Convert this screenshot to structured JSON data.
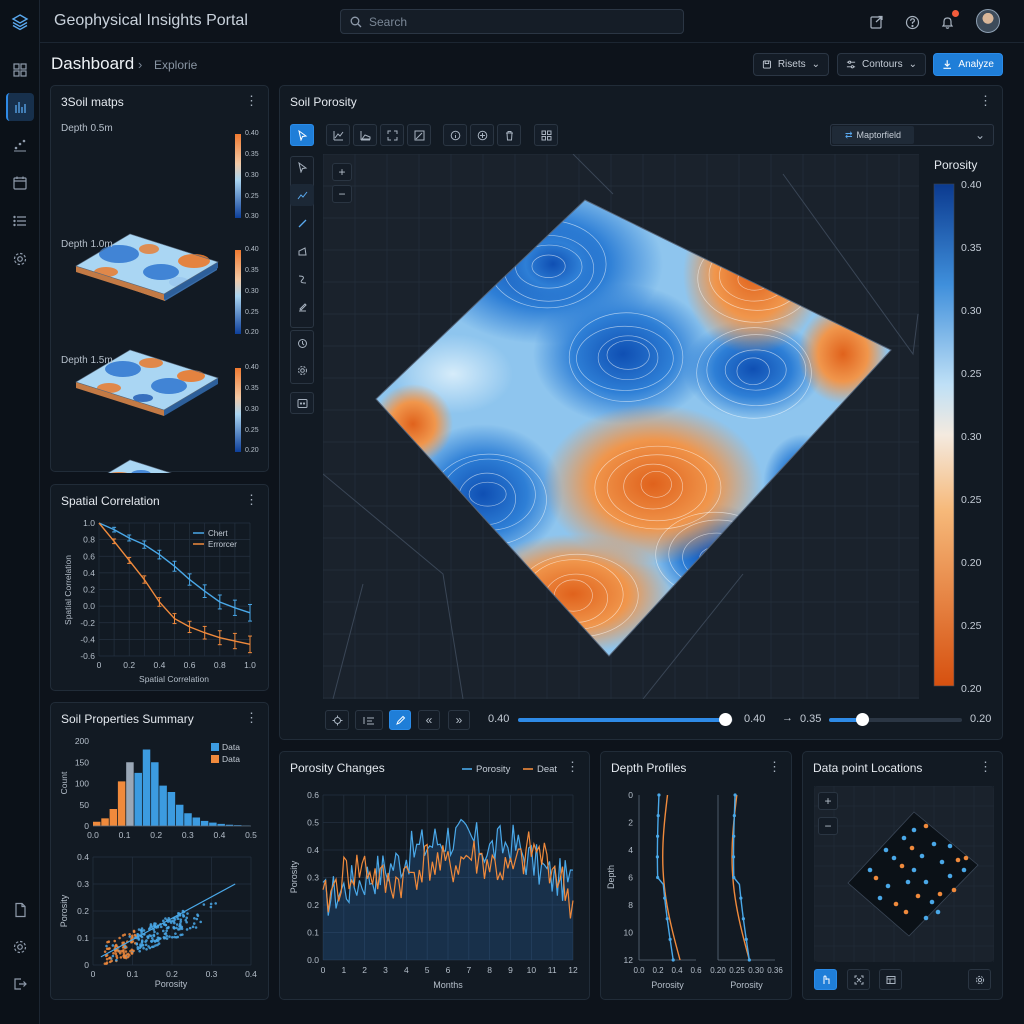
{
  "app": {
    "title": "Geophysical Insights Portal"
  },
  "search": {
    "placeholder": "Search"
  },
  "breadcrumb": {
    "title": "Dashboard",
    "current": "Explorie"
  },
  "toolbar": {
    "presets_label": "Risets",
    "contours_label": "Contours",
    "analyze_label": "Analyze",
    "accent": "#1f7ed8"
  },
  "rail": {
    "icons": [
      "grid-icon",
      "chart-icon",
      "scatter-icon",
      "calendar-icon",
      "list-icon",
      "settings-icon",
      "document-icon",
      "gear-icon",
      "logout-icon"
    ]
  },
  "soil_maps": {
    "title": "3Soil matps",
    "depths": [
      {
        "label": "Depth 0.5m",
        "scale": [
          "0.40",
          "0.35",
          "0.30",
          "0.25",
          "0.30"
        ]
      },
      {
        "label": "Depth 1.0m",
        "scale": [
          "0.40",
          "0.35",
          "0.30",
          "0.25",
          "0.20"
        ]
      },
      {
        "label": "Depth 1.5m",
        "scale": [
          "0.40",
          "0.35",
          "0.30",
          "0.25",
          "0.20"
        ]
      }
    ]
  },
  "main_map": {
    "title": "Soil Porosity",
    "layer": "Maptorfield",
    "legend_title": "Porosity",
    "legend_ticks": [
      "0.40",
      "0.35",
      "0.30",
      "0.25",
      "0.30",
      "0.25",
      "0.20",
      "0.25",
      "0.20"
    ],
    "slider": {
      "min_label": "0.40",
      "max_label": "0.40",
      "value": 1.0,
      "arrow": "→",
      "range_min": "0.35",
      "range_max": "0.20",
      "range_value": 0.25
    }
  },
  "spatial_correlation": {
    "title": "Spatial Correlation",
    "chart_data": {
      "type": "line",
      "x": [
        0,
        0.1,
        0.2,
        0.3,
        0.4,
        0.5,
        0.6,
        0.7,
        0.8,
        0.9,
        1.0
      ],
      "series": [
        {
          "name": "Chert",
          "color": "#4aa8e8",
          "values": [
            1.0,
            0.92,
            0.82,
            0.74,
            0.62,
            0.48,
            0.32,
            0.18,
            0.05,
            -0.02,
            -0.08
          ]
        },
        {
          "name": "Errorcer",
          "color": "#f08a3c",
          "values": [
            1.0,
            0.78,
            0.55,
            0.32,
            0.05,
            -0.15,
            -0.25,
            -0.32,
            -0.38,
            -0.42,
            -0.46
          ]
        }
      ],
      "xlabel": "Spatial Correlation",
      "ylabel": "Spatial Correlation",
      "xticks": [
        "0",
        "0.2",
        "0.4",
        "0.6",
        "0.8",
        "1.0"
      ],
      "yticks": [
        "1.0",
        "0.8",
        "0.6",
        "0.4",
        "0.2",
        "0.0",
        "-0.2",
        "-0.4",
        "-0.6"
      ],
      "xlim": [
        0,
        1.0
      ],
      "ylim": [
        -0.6,
        1.0
      ]
    }
  },
  "soil_summary": {
    "title": "Soil Properties Summary",
    "histogram": {
      "type": "bar",
      "legend": [
        "Data",
        "Data"
      ],
      "colors": [
        "#3c9be0",
        "#f08a3c"
      ],
      "bins": [
        0.0,
        0.025,
        0.05,
        0.075,
        0.1,
        0.125,
        0.15,
        0.175,
        0.2,
        0.225,
        0.25,
        0.275,
        0.3,
        0.325,
        0.35,
        0.375,
        0.4,
        0.425,
        0.45
      ],
      "values": [
        10,
        18,
        40,
        105,
        150,
        125,
        180,
        150,
        95,
        80,
        50,
        30,
        20,
        12,
        8,
        5,
        3,
        2,
        1
      ],
      "series_index": [
        1,
        1,
        1,
        1,
        1,
        0,
        0,
        0,
        0,
        0,
        0,
        0,
        0,
        0,
        0,
        0,
        0,
        0,
        0
      ],
      "yticks": [
        "200",
        "150",
        "100",
        "50",
        "0"
      ],
      "xticks": [
        "0.0",
        "0.1",
        "0.2",
        "0.3",
        "0.4",
        "0.5"
      ],
      "ylabel": "Count"
    },
    "scatter": {
      "type": "scatter",
      "xlabel": "Porosity",
      "ylabel": "Porosity",
      "xticks": [
        "0",
        "0.1",
        "0.2",
        "0.3",
        "0.4"
      ],
      "yticks": [
        "0.4",
        "0.3",
        "0.2",
        "0.1",
        "0"
      ],
      "xlim": [
        0,
        0.4
      ],
      "ylim": [
        0,
        0.4
      ]
    }
  },
  "porosity_changes": {
    "title": "Porosity Changes",
    "chart_data": {
      "type": "line",
      "x": [
        0,
        1,
        2,
        3,
        4,
        5,
        6,
        7,
        8,
        9,
        10,
        11,
        12
      ],
      "series": [
        {
          "name": "Porosity",
          "color": "#4aa8e8",
          "values": [
            0.22,
            0.26,
            0.3,
            0.33,
            0.38,
            0.42,
            0.45,
            0.44,
            0.4,
            0.43,
            0.36,
            0.3,
            0.28
          ]
        },
        {
          "name": "Deat",
          "color": "#f08a3c",
          "values": [
            0.2,
            0.31,
            0.34,
            0.27,
            0.3,
            0.36,
            0.33,
            0.38,
            0.35,
            0.31,
            0.4,
            0.35,
            0.2
          ]
        }
      ],
      "xlabel": "Months",
      "ylabel": "Porosity",
      "xticks": [
        "0",
        "1",
        "2",
        "3",
        "4",
        "5",
        "6",
        "7",
        "8",
        "9",
        "10",
        "11",
        "12"
      ],
      "yticks": [
        "0.6",
        "0.5",
        "0.4",
        "0.3",
        "0.2",
        "0.1",
        "0.0"
      ],
      "xlim": [
        0,
        12
      ],
      "ylim": [
        0,
        0.6
      ]
    }
  },
  "depth_profiles": {
    "title": "Depth Profiles",
    "ylabel": "Depth",
    "yticks": [
      "0",
      "2",
      "4",
      "6",
      "8",
      "10",
      "12"
    ],
    "left": {
      "xlabel": "Porosity",
      "xticks": [
        "0.0",
        "0.2",
        "0.4",
        "0.6"
      ]
    },
    "right": {
      "xlabel": "Porosity",
      "xticks": [
        "0.20",
        "0.25",
        "0.30",
        "0.36"
      ]
    }
  },
  "data_points": {
    "title": "Data point Locations"
  }
}
